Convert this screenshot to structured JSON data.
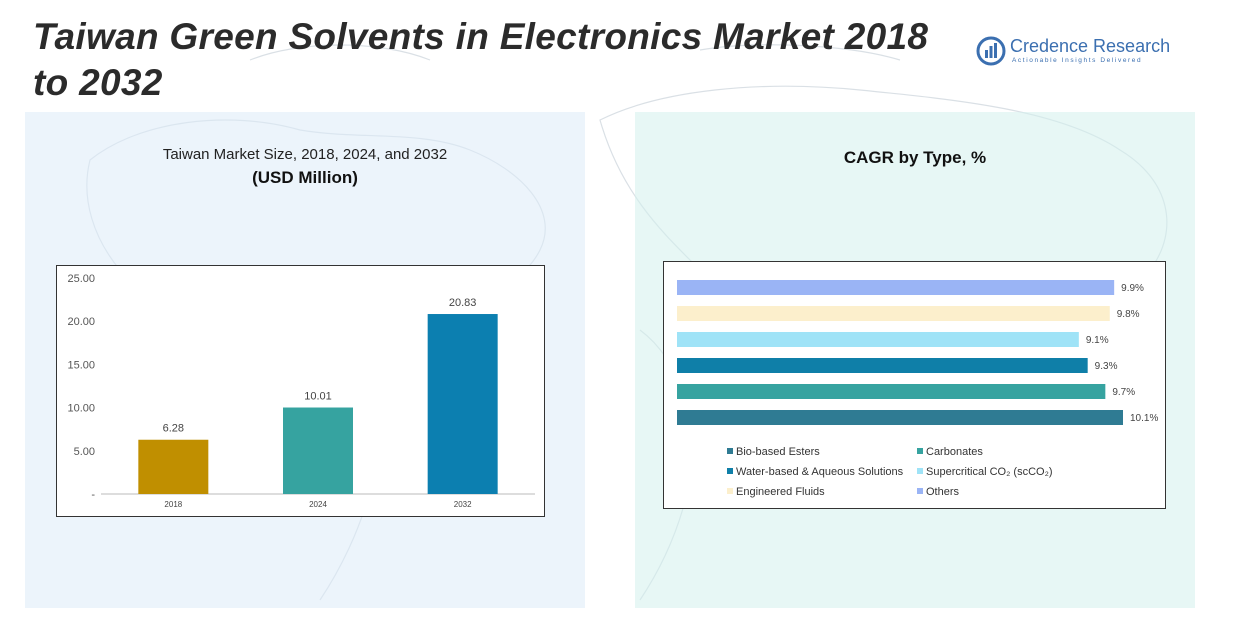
{
  "title": "Taiwan Green Solvents in Electronics Market 2018 to 2032",
  "logo": {
    "name": "Credence Research",
    "tagline": "Actionable Insights Delivered"
  },
  "chart_data": [
    {
      "type": "bar",
      "title": "Taiwan Market Size, 2018, 2024, and 2032",
      "subtitle": "(USD Million)",
      "categories": [
        "2018",
        "2024",
        "2032"
      ],
      "values": [
        6.28,
        10.01,
        20.83
      ],
      "value_labels": [
        "6.28",
        "10.01",
        "20.83"
      ],
      "colors": [
        "#c08f00",
        "#36a3a0",
        "#0c7fb0"
      ],
      "ylim": [
        0,
        25
      ],
      "yticks": [
        0,
        5,
        10,
        15,
        20,
        25
      ],
      "ytick_labels": [
        "-",
        "5.00",
        "10.00",
        "15.00",
        "20.00",
        "25.00"
      ],
      "xlabel": "",
      "ylabel": ""
    },
    {
      "type": "bar",
      "orientation": "horizontal",
      "title": "CAGR by Type, %",
      "categories": [
        "Others",
        "Engineered Fluids",
        "Supercritical CO₂ (scCO₂)",
        "Water-based & Aqueous Solutions",
        "Carbonates",
        "Bio-based Esters"
      ],
      "values": [
        9.9,
        9.8,
        9.1,
        9.3,
        9.7,
        10.1
      ],
      "value_labels": [
        "9.9%",
        "9.8%",
        "9.1%",
        "9.3%",
        "9.7%",
        "10.1%"
      ],
      "colors": [
        "#9ab4f5",
        "#fcefcc",
        "#9fe3f7",
        "#0f7fa8",
        "#36a3a0",
        "#2f7b93"
      ],
      "legend": [
        {
          "label": "Bio-based Esters",
          "color": "#2f7b93"
        },
        {
          "label": "Carbonates",
          "color": "#36a3a0"
        },
        {
          "label": "Water-based & Aqueous Solutions",
          "color": "#0f7fa8"
        },
        {
          "label": "Supercritical CO₂ (scCO₂)",
          "color": "#9fe3f7"
        },
        {
          "label": "Engineered Fluids",
          "color": "#fcefcc"
        },
        {
          "label": "Others",
          "color": "#9ab4f5"
        }
      ],
      "legend_position": "bottom"
    }
  ]
}
